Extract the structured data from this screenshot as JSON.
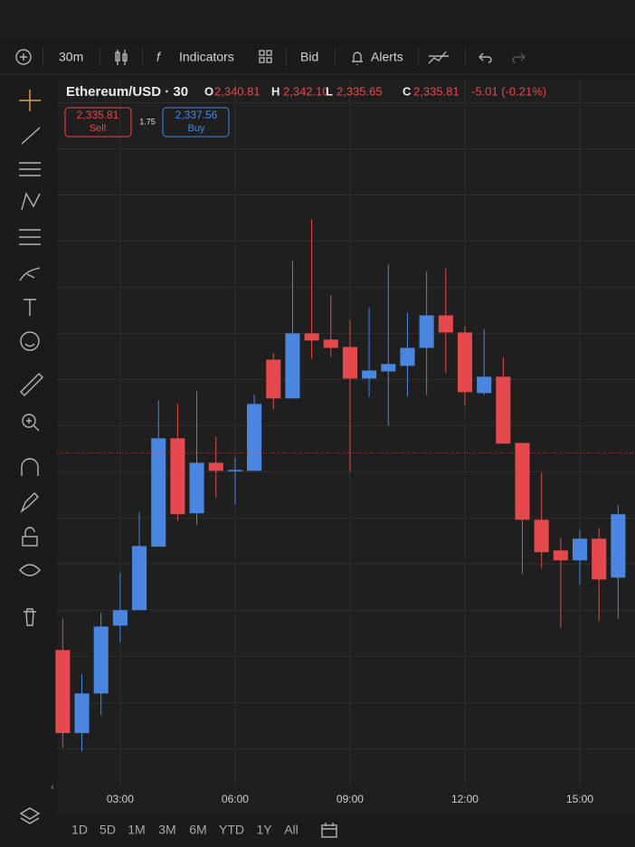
{
  "toolbar": {
    "interval": "30m",
    "indicators": "Indicators",
    "price_side": "Bid",
    "alerts": "Alerts"
  },
  "header": {
    "symbol": "Ethereum/USD · 30",
    "ohlc": [
      {
        "key": "O",
        "value": "2,340.81"
      },
      {
        "key": "H",
        "value": "2,342.10"
      },
      {
        "key": "L",
        "value": "2,335.65"
      },
      {
        "key": "C",
        "value": "2,335.81"
      }
    ],
    "change": "-5.01 (-0.21%)",
    "sell": {
      "price": "2,335.81",
      "label": "Sell"
    },
    "spread": "1.75",
    "buy": {
      "price": "2,337.56",
      "label": "Buy"
    }
  },
  "ranges": [
    "1D",
    "5D",
    "1M",
    "3M",
    "6M",
    "YTD",
    "1Y",
    "All"
  ],
  "chart_data": {
    "type": "candlestick",
    "up_color": "#4a86e0",
    "down_color": "#e5484d",
    "grid": true,
    "x": [
      1.5,
      2,
      2.5,
      3,
      3.5,
      4,
      4.5,
      5,
      5.5,
      6,
      6.5,
      7,
      7.5,
      8,
      8.5,
      9,
      9.5,
      10,
      10.5,
      11,
      11.5,
      12,
      12.5,
      13,
      13.5,
      14,
      14.5,
      15,
      15.5,
      16
    ],
    "open": [
      2327.27,
      2323.67,
      2325.39,
      2328.33,
      2329.0,
      2331.75,
      2336.45,
      2333.2,
      2335.39,
      2335.04,
      2335.04,
      2339.86,
      2338.18,
      2341.0,
      2340.73,
      2340.41,
      2339.04,
      2339.35,
      2339.59,
      2340.37,
      2341.78,
      2341.04,
      2338.41,
      2339.12,
      2336.25,
      2332.92,
      2331.59,
      2331.16,
      2332.1,
      2330.41
    ],
    "high": [
      2328.65,
      2326.22,
      2328.88,
      2330.61,
      2333.24,
      2338.1,
      2337.94,
      2338.49,
      2336.53,
      2335.63,
      2338.33,
      2340.14,
      2344.14,
      2345.94,
      2342.65,
      2341.59,
      2342.1,
      2343.98,
      2341.9,
      2343.67,
      2343.82,
      2341.31,
      2341.2,
      2339.98,
      2336.25,
      2334.96,
      2332.14,
      2332.49,
      2332.57,
      2333.55
    ],
    "low": [
      2323.04,
      2322.88,
      2324.45,
      2327.59,
      2329.0,
      2331.75,
      2332.88,
      2332.69,
      2333.86,
      2333.59,
      2335.04,
      2337.71,
      2338.18,
      2339.9,
      2339.98,
      2335.0,
      2338.25,
      2337.0,
      2338.25,
      2338.33,
      2339.27,
      2337.86,
      2338.33,
      2336.22,
      2330.57,
      2330.8,
      2328.22,
      2330.1,
      2328.53,
      2328.61
    ],
    "close": [
      2323.67,
      2325.39,
      2328.29,
      2329.0,
      2331.78,
      2336.45,
      2333.16,
      2335.39,
      2335.04,
      2335.08,
      2337.94,
      2338.18,
      2341.0,
      2340.69,
      2340.37,
      2339.04,
      2339.39,
      2339.67,
      2340.37,
      2341.78,
      2341.04,
      2338.45,
      2339.12,
      2336.22,
      2332.92,
      2331.51,
      2331.16,
      2332.1,
      2330.33,
      2333.16
    ],
    "price_line": 2335.81,
    "xlim": [
      1.35,
      16.44
    ],
    "xticks": [
      {
        "value": 3,
        "label": "03:00"
      },
      {
        "value": 6,
        "label": "06:00"
      },
      {
        "value": 9,
        "label": "09:00"
      },
      {
        "value": 12,
        "label": "12:00"
      },
      {
        "value": 15,
        "label": "15:00"
      }
    ],
    "ylim": [
      2321.4,
      2352
    ],
    "yticks": [
      2323,
      2325,
      2327,
      2329,
      2331,
      2333,
      2335,
      2337,
      2339,
      2341,
      2343,
      2345,
      2347,
      2349,
      2351
    ]
  }
}
